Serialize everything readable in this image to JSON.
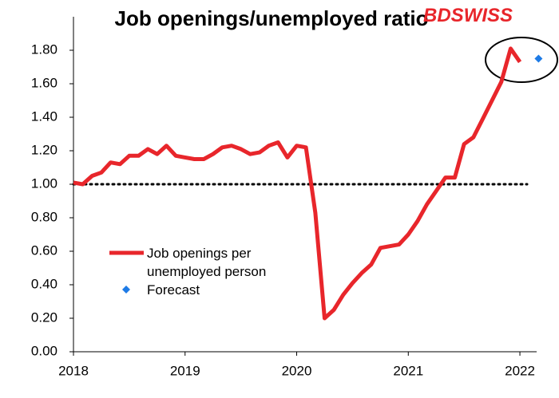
{
  "chart_data": {
    "type": "line",
    "title": "Job openings/unemployed ratio",
    "logo": "BDSWISS",
    "xlim": [
      2018,
      2022.15
    ],
    "xticks": [
      2018,
      2019,
      2020,
      2021,
      2022
    ],
    "ylim": [
      0,
      2.0
    ],
    "yticks": [
      {
        "value": 0,
        "label": "0.00"
      },
      {
        "value": 0.2,
        "label": "0.20"
      },
      {
        "value": 0.4,
        "label": "0.40"
      },
      {
        "value": 0.6,
        "label": "0.60"
      },
      {
        "value": 0.8,
        "label": "0.80"
      },
      {
        "value": 1.0,
        "label": "1.00"
      },
      {
        "value": 1.2,
        "label": "1.20"
      },
      {
        "value": 1.4,
        "label": "1.40"
      },
      {
        "value": 1.6,
        "label": "1.60"
      },
      {
        "value": 1.8,
        "label": "1.80"
      }
    ],
    "hline": 1.0,
    "series": [
      {
        "name": "Job openings per unemployed person",
        "color": "#e8262b",
        "marker": "line",
        "x": [
          2018,
          2018.083,
          2018.167,
          2018.25,
          2018.333,
          2018.417,
          2018.5,
          2018.583,
          2018.667,
          2018.75,
          2018.833,
          2018.917,
          2019,
          2019.083,
          2019.167,
          2019.25,
          2019.333,
          2019.417,
          2019.5,
          2019.583,
          2019.667,
          2019.75,
          2019.833,
          2019.917,
          2020,
          2020.083,
          2020.167,
          2020.25,
          2020.333,
          2020.417,
          2020.5,
          2020.583,
          2020.667,
          2020.75,
          2020.833,
          2020.917,
          2021,
          2021.083,
          2021.167,
          2021.25,
          2021.333,
          2021.417,
          2021.5,
          2021.583,
          2021.667,
          2021.75,
          2021.833,
          2021.917,
          2022
        ],
        "values": [
          1.01,
          1.0,
          1.05,
          1.07,
          1.13,
          1.12,
          1.17,
          1.17,
          1.21,
          1.18,
          1.23,
          1.17,
          1.16,
          1.15,
          1.15,
          1.18,
          1.22,
          1.23,
          1.21,
          1.18,
          1.19,
          1.23,
          1.25,
          1.16,
          1.23,
          1.22,
          0.83,
          0.2,
          0.25,
          0.34,
          0.41,
          0.47,
          0.52,
          0.62,
          0.63,
          0.64,
          0.7,
          0.78,
          0.88,
          0.96,
          1.04,
          1.04,
          1.24,
          1.28,
          1.39,
          1.5,
          1.61,
          1.81,
          1.73
        ]
      },
      {
        "name": "Forecast",
        "color": "#1e7be6",
        "marker": "diamond",
        "x": [
          2022.167
        ],
        "values": [
          1.75
        ]
      }
    ]
  }
}
